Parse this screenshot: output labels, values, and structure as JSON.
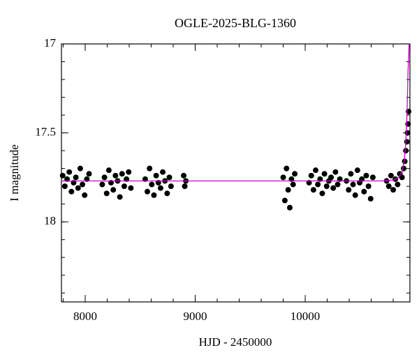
{
  "chart_data": {
    "type": "scatter",
    "title": "OGLE-2025-BLG-1360",
    "x_label": "HJD - 2450000",
    "y_label": "I magnitude",
    "xlim": [
      7784,
      10952
    ],
    "xticks": [
      8000,
      9000,
      10000
    ],
    "ylim": [
      18.45,
      17
    ],
    "yticks": [
      17,
      17.5,
      18
    ],
    "series": [
      {
        "type": "scatter",
        "color": "#000000",
        "x": [
          7795,
          7815,
          7835,
          7855,
          7875,
          7895,
          7915,
          7935,
          7955,
          7975,
          7995,
          8015,
          8035,
          8155,
          8175,
          8195,
          8215,
          8235,
          8255,
          8275,
          8295,
          8315,
          8335,
          8355,
          8375,
          8395,
          8415,
          8545,
          8565,
          8585,
          8605,
          8625,
          8645,
          8665,
          8685,
          8705,
          8725,
          8745,
          8765,
          8780,
          8895,
          8905,
          8915,
          9800,
          9815,
          9830,
          9845,
          9860,
          9875,
          9890,
          9905,
          10035,
          10055,
          10075,
          10095,
          10115,
          10135,
          10155,
          10175,
          10195,
          10215,
          10235,
          10255,
          10275,
          10295,
          10315,
          10375,
          10395,
          10415,
          10435,
          10455,
          10475,
          10495,
          10515,
          10535,
          10555,
          10575,
          10595,
          10615,
          10740,
          10760,
          10780,
          10800,
          10820,
          10840,
          10860,
          10880,
          10895,
          10905,
          10915,
          10925,
          10930,
          10935,
          10940
        ],
        "values": [
          17.74,
          17.8,
          17.76,
          17.72,
          17.83,
          17.78,
          17.75,
          17.81,
          17.7,
          17.79,
          17.85,
          17.76,
          17.73,
          17.79,
          17.75,
          17.84,
          17.71,
          17.78,
          17.82,
          17.74,
          17.77,
          17.86,
          17.73,
          17.8,
          17.76,
          17.72,
          17.81,
          17.76,
          17.83,
          17.7,
          17.79,
          17.85,
          17.74,
          17.78,
          17.81,
          17.72,
          17.77,
          17.84,
          17.75,
          17.8,
          17.74,
          17.8,
          17.77,
          17.75,
          17.88,
          17.7,
          17.82,
          17.92,
          17.76,
          17.79,
          17.73,
          17.78,
          17.74,
          17.82,
          17.71,
          17.79,
          17.76,
          17.84,
          17.73,
          17.8,
          17.77,
          17.75,
          17.81,
          17.72,
          17.79,
          17.76,
          17.77,
          17.82,
          17.73,
          17.79,
          17.85,
          17.71,
          17.78,
          17.76,
          17.83,
          17.74,
          17.8,
          17.87,
          17.75,
          17.77,
          17.8,
          17.74,
          17.82,
          17.76,
          17.79,
          17.73,
          17.75,
          17.7,
          17.66,
          17.6,
          17.55,
          17.5,
          17.45,
          17.38
        ]
      },
      {
        "type": "line",
        "color": "#cc00cc",
        "x": [
          7784,
          10700,
          10800,
          10850,
          10880,
          10900,
          10915,
          10925,
          10935,
          10945
        ],
        "values": [
          17.77,
          17.77,
          17.765,
          17.75,
          17.72,
          17.66,
          17.55,
          17.4,
          17.15,
          17.0
        ]
      }
    ]
  }
}
